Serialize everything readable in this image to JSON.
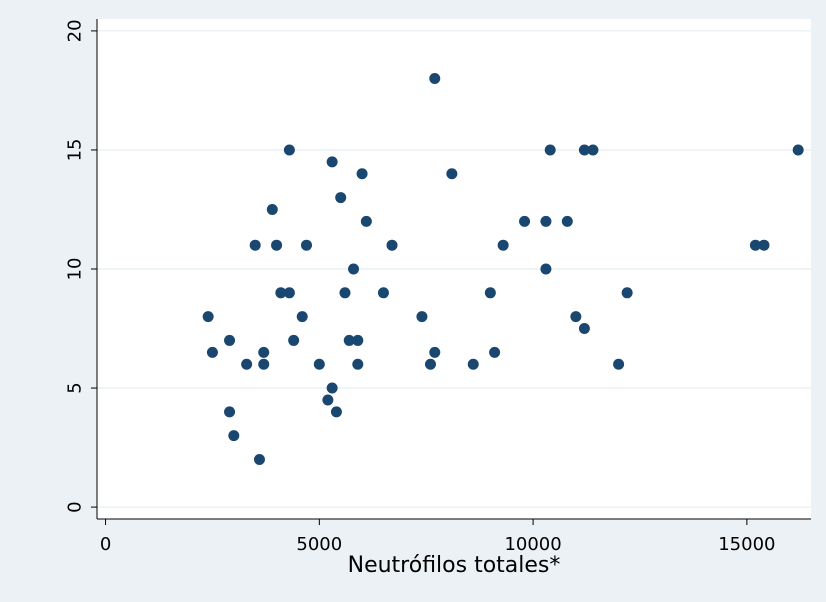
{
  "chart_data": {
    "type": "scatter",
    "title": "",
    "xlabel": "Neutrófilos totales*",
    "ylabel": "",
    "xlim": [
      -200,
      16500
    ],
    "ylim": [
      -0.5,
      20.5
    ],
    "grid": "horizontal",
    "xticks": [
      0,
      5000,
      10000,
      15000
    ],
    "yticks": [
      0,
      5,
      10,
      15,
      20
    ],
    "xtick_labels": [
      "0",
      "5000",
      "10000",
      "15000"
    ],
    "ytick_labels": [
      "0",
      "5",
      "10",
      "15",
      "20"
    ],
    "marker_color": "#1a476f",
    "points": [
      [
        2400,
        8
      ],
      [
        2500,
        6.5
      ],
      [
        2900,
        7
      ],
      [
        2900,
        4
      ],
      [
        3000,
        3
      ],
      [
        3300,
        6
      ],
      [
        3500,
        11
      ],
      [
        3600,
        2
      ],
      [
        3700,
        6.5
      ],
      [
        3700,
        6
      ],
      [
        3900,
        12.5
      ],
      [
        4000,
        11
      ],
      [
        4100,
        9
      ],
      [
        4300,
        15
      ],
      [
        4300,
        9
      ],
      [
        4400,
        7
      ],
      [
        4600,
        8
      ],
      [
        4700,
        11
      ],
      [
        5000,
        6
      ],
      [
        5200,
        4.5
      ],
      [
        5300,
        14.5
      ],
      [
        5300,
        5
      ],
      [
        5400,
        4
      ],
      [
        5500,
        13
      ],
      [
        5600,
        9
      ],
      [
        5700,
        7
      ],
      [
        5800,
        10
      ],
      [
        5900,
        7
      ],
      [
        5900,
        6
      ],
      [
        6000,
        14
      ],
      [
        6100,
        12
      ],
      [
        6500,
        9
      ],
      [
        6700,
        11
      ],
      [
        7400,
        8
      ],
      [
        7600,
        6
      ],
      [
        7700,
        18
      ],
      [
        7700,
        6.5
      ],
      [
        8100,
        14
      ],
      [
        8600,
        6
      ],
      [
        9000,
        9
      ],
      [
        9100,
        6.5
      ],
      [
        9300,
        11
      ],
      [
        9800,
        12
      ],
      [
        10300,
        12
      ],
      [
        10300,
        10
      ],
      [
        10400,
        15
      ],
      [
        10800,
        12
      ],
      [
        11000,
        8
      ],
      [
        11200,
        15
      ],
      [
        11200,
        7.5
      ],
      [
        11400,
        15
      ],
      [
        12000,
        6
      ],
      [
        12200,
        9
      ],
      [
        15200,
        11
      ],
      [
        15400,
        11
      ],
      [
        16200,
        15
      ]
    ]
  }
}
